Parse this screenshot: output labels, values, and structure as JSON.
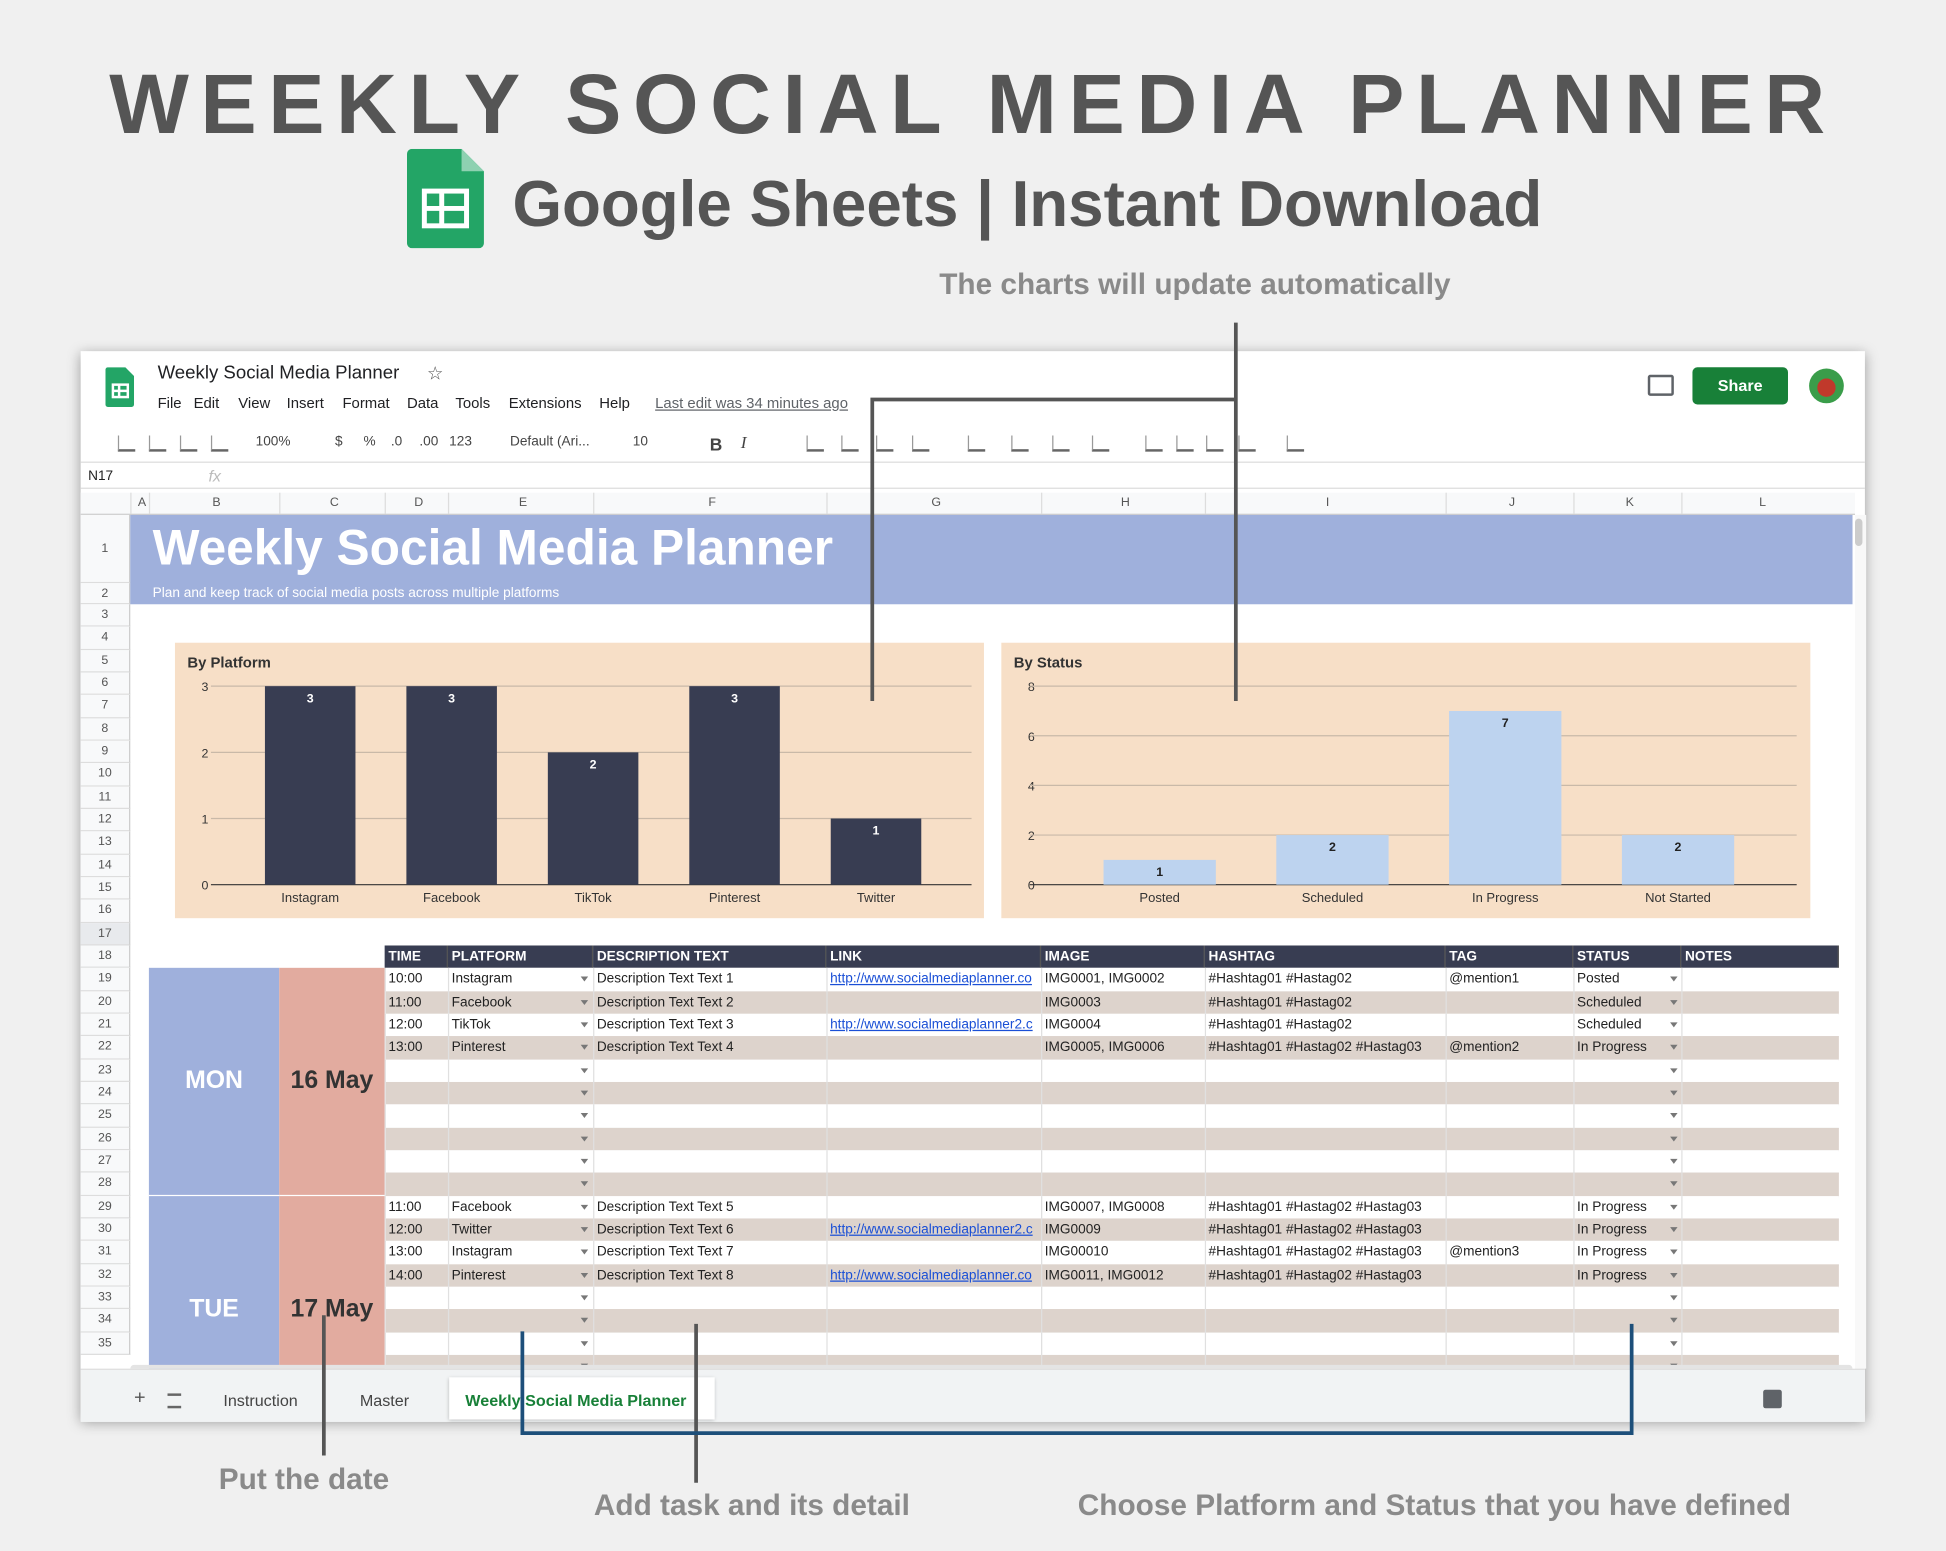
{
  "header": {
    "title": "WEEKLY SOCIAL MEDIA PLANNER",
    "subtitle": "Google Sheets | Instant Download"
  },
  "callouts": {
    "charts": "The charts will update automatically",
    "date": "Put the date",
    "task": "Add task and its detail",
    "choose": "Choose Platform and Status that you have defined"
  },
  "app": {
    "doc_title": "Weekly Social Media Planner",
    "menu": [
      "File",
      "Edit",
      "View",
      "Insert",
      "Format",
      "Data",
      "Tools",
      "Extensions",
      "Help"
    ],
    "last_edit": "Last edit was 34 minutes ago",
    "share": "Share",
    "toolbar": [
      "100%",
      "$",
      "%",
      ".0",
      ".00",
      "123",
      "Default (Ari...",
      "10",
      "B",
      "I"
    ],
    "cell_ref": "N17",
    "fx": "fx",
    "columns": [
      "A",
      "B",
      "C",
      "D",
      "E",
      "F",
      "G",
      "H",
      "I",
      "J",
      "K",
      "L"
    ],
    "row_numbers": [
      1,
      2,
      3,
      4,
      5,
      6,
      7,
      8,
      9,
      10,
      11,
      12,
      13,
      14,
      15,
      16,
      17,
      18,
      19,
      20,
      21,
      22,
      23,
      24,
      25,
      26,
      27,
      28,
      29,
      30,
      31,
      32,
      33,
      34,
      35
    ],
    "tabs": [
      "Instruction",
      "Master",
      "Weekly Social Media Planner"
    ],
    "add_tab": "+"
  },
  "sheet": {
    "title": "Weekly Social Media Planner",
    "subtitle": "Plan and keep track of social media posts across multiple platforms"
  },
  "chart_data": [
    {
      "type": "bar",
      "title": "By Platform",
      "categories": [
        "Instagram",
        "Facebook",
        "TikTok",
        "Pinterest",
        "Twitter"
      ],
      "values": [
        3,
        3,
        2,
        3,
        1
      ],
      "color": "#383d52",
      "label_color": "#ffffff",
      "ylim": [
        0,
        3
      ],
      "yticks": [
        0,
        1,
        2,
        3
      ],
      "grid": true
    },
    {
      "type": "bar",
      "title": "By Status",
      "categories": [
        "Posted",
        "Scheduled",
        "In Progress",
        "Not Started"
      ],
      "values": [
        1,
        2,
        7,
        2
      ],
      "color": "#bdd3ef",
      "label_color": "#222222",
      "ylim": [
        0,
        8
      ],
      "yticks": [
        0,
        2,
        4,
        6,
        8
      ],
      "grid": true
    }
  ],
  "table": {
    "headers": [
      "TIME",
      "PLATFORM",
      "DESCRIPTION TEXT",
      "LINK",
      "IMAGE",
      "HASHTAG",
      "TAG",
      "STATUS",
      "NOTES"
    ],
    "days": [
      {
        "day": "MON",
        "date": "16 May",
        "rows": [
          {
            "time": "10:00",
            "platform": "Instagram",
            "description": "Description Text Text 1",
            "link": "http://www.socialmediaplanner.co",
            "image": "IMG0001, IMG0002",
            "hashtag": "#Hashtag01 #Hastag02",
            "tag": "@mention1",
            "status": "Posted"
          },
          {
            "time": "11:00",
            "platform": "Facebook",
            "description": "Description Text Text 2",
            "image": "IMG0003",
            "hashtag": "#Hashtag01 #Hastag02",
            "status": "Scheduled"
          },
          {
            "time": "12:00",
            "platform": "TikTok",
            "description": "Description Text Text 3",
            "link": "http://www.socialmediaplanner2.c",
            "image": "IMG0004",
            "hashtag": "#Hashtag01 #Hastag02",
            "status": "Scheduled"
          },
          {
            "time": "13:00",
            "platform": "Pinterest",
            "description": "Description Text Text 4",
            "image": "IMG0005, IMG0006",
            "hashtag": "#Hashtag01 #Hastag02 #Hastag03",
            "tag": "@mention2",
            "status": "In Progress"
          }
        ]
      },
      {
        "day": "TUE",
        "date": "17 May",
        "rows": [
          {
            "time": "11:00",
            "platform": "Facebook",
            "description": "Description Text Text 5",
            "image": "IMG0007, IMG0008",
            "hashtag": "#Hashtag01 #Hastag02 #Hastag03",
            "status": "In Progress"
          },
          {
            "time": "12:00",
            "platform": "Twitter",
            "description": "Description Text Text 6",
            "link": "http://www.socialmediaplanner2.c",
            "image": "IMG0009",
            "hashtag": "#Hashtag01 #Hastag02 #Hastag03",
            "status": "In Progress"
          },
          {
            "time": "13:00",
            "platform": "Instagram",
            "description": "Description Text Text 7",
            "image": "IMG00010",
            "hashtag": "#Hashtag01 #Hastag02 #Hastag03",
            "tag": "@mention3",
            "status": "In Progress"
          },
          {
            "time": "14:00",
            "platform": "Pinterest",
            "description": "Description Text Text 8",
            "link": "http://www.socialmediaplanner.co",
            "image": "IMG0011, IMG0012",
            "hashtag": "#Hashtag01 #Hastag02 #Hastag03",
            "status": "In Progress"
          }
        ]
      }
    ]
  }
}
